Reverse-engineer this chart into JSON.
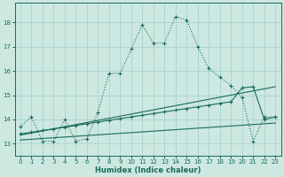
{
  "xlabel": "Humidex (Indice chaleur)",
  "background_color": "#cce8e0",
  "grid_color": "#a8d4cc",
  "line_color": "#1a6b5a",
  "xlim": [
    -0.5,
    23.5
  ],
  "ylim": [
    12.5,
    18.8
  ],
  "yticks": [
    13,
    14,
    15,
    16,
    17,
    18
  ],
  "xticks": [
    0,
    1,
    2,
    3,
    4,
    5,
    6,
    7,
    8,
    9,
    10,
    11,
    12,
    13,
    14,
    15,
    16,
    17,
    18,
    19,
    20,
    21,
    22,
    23
  ],
  "series1_x": [
    0,
    1,
    2,
    3,
    4,
    5,
    6,
    7,
    8,
    9,
    10,
    11,
    12,
    13,
    14,
    15,
    16,
    17,
    18,
    19,
    20,
    21,
    22,
    23
  ],
  "series1_y": [
    13.7,
    14.1,
    13.1,
    13.1,
    14.0,
    13.1,
    13.2,
    14.3,
    15.9,
    15.9,
    16.9,
    17.9,
    17.15,
    17.15,
    18.25,
    18.1,
    17.0,
    16.1,
    15.75,
    15.4,
    14.9,
    13.1,
    14.1,
    14.1
  ],
  "series2_x": [
    0,
    1,
    2,
    3,
    4,
    5,
    6,
    7,
    8,
    9,
    10,
    11,
    12,
    13,
    14,
    15,
    16,
    17,
    18,
    19,
    20,
    21,
    22,
    23
  ],
  "series2_y": [
    13.4,
    13.47,
    13.54,
    13.61,
    13.68,
    13.75,
    13.82,
    13.89,
    13.96,
    14.03,
    14.1,
    14.17,
    14.24,
    14.31,
    14.38,
    14.45,
    14.52,
    14.59,
    14.66,
    14.73,
    15.3,
    15.35,
    14.0,
    14.1
  ],
  "series3_x": [
    0,
    23
  ],
  "series3_y": [
    13.15,
    13.85
  ],
  "series4_x": [
    0,
    23
  ],
  "series4_y": [
    13.35,
    15.35
  ]
}
